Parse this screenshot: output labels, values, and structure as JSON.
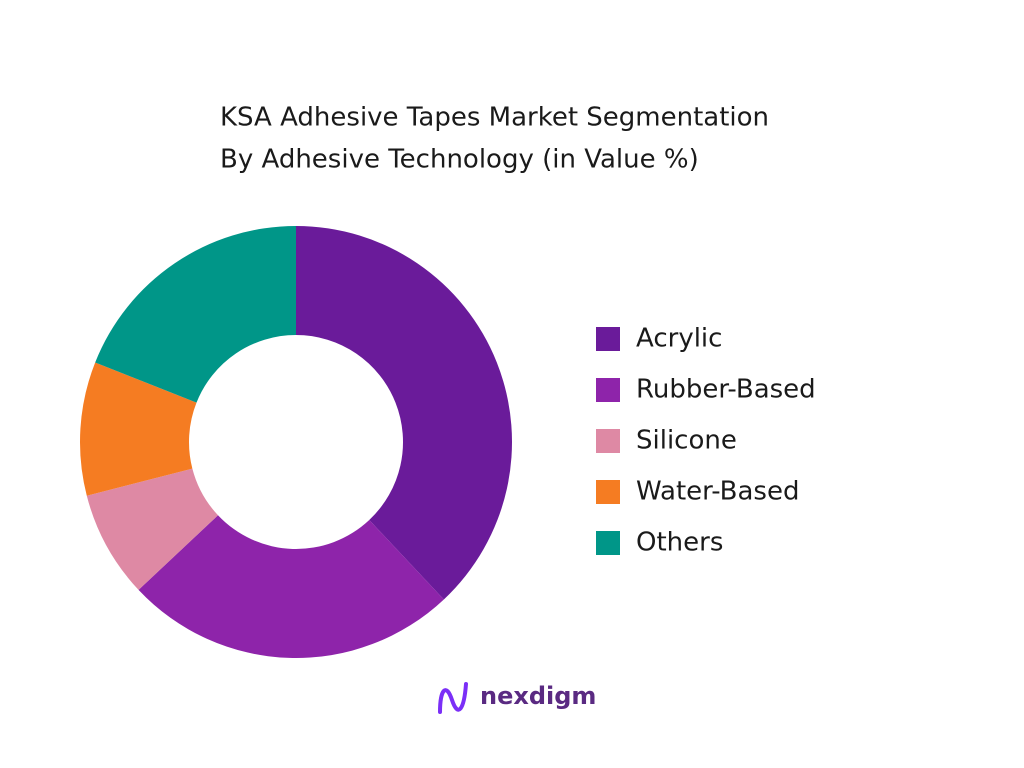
{
  "chart_data": {
    "type": "donut",
    "title": [
      "KSA Adhesive Tapes Market Segmentation",
      "By Adhesive Technology  (in Value %)"
    ],
    "categories": [
      "Acrylic",
      "Rubber-Based",
      "Silicone",
      "Water-Based",
      "Others"
    ],
    "values": [
      38,
      25,
      8,
      10,
      19
    ],
    "colors": [
      "#6a1b9a",
      "#8e24aa",
      "#de89a4",
      "#f57c22",
      "#009688"
    ],
    "legend": "right"
  },
  "logo": {
    "text": "nexdigm"
  }
}
